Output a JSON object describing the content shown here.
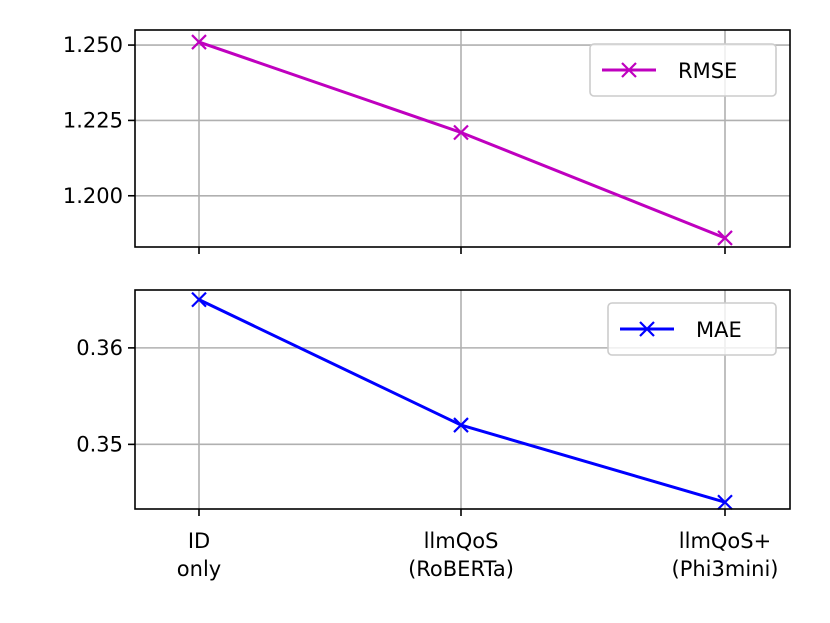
{
  "chart_data": [
    {
      "type": "line",
      "categories": [
        "ID\nonly",
        "llmQoS\n(RoBERTa)",
        "llmQoS+\n(Phi3mini)"
      ],
      "series": [
        {
          "name": "RMSE",
          "values": [
            1.251,
            1.221,
            1.186
          ],
          "color": "#bf00bf",
          "marker": "x"
        }
      ],
      "yticks": [
        "1.200",
        "1.225",
        "1.250"
      ],
      "ylim": [
        1.183,
        1.255
      ],
      "grid": true,
      "legend": "top-right",
      "show_xticklabels": false
    },
    {
      "type": "line",
      "categories": [
        "ID\nonly",
        "llmQoS\n(RoBERTa)",
        "llmQoS+\n(Phi3mini)"
      ],
      "series": [
        {
          "name": "MAE",
          "values": [
            0.365,
            0.352,
            0.344
          ],
          "color": "#0000ff",
          "marker": "x"
        }
      ],
      "yticks": [
        "0.35",
        "0.36"
      ],
      "ylim": [
        0.3433,
        0.366
      ],
      "grid": true,
      "legend": "top-right",
      "show_xticklabels": true
    }
  ]
}
